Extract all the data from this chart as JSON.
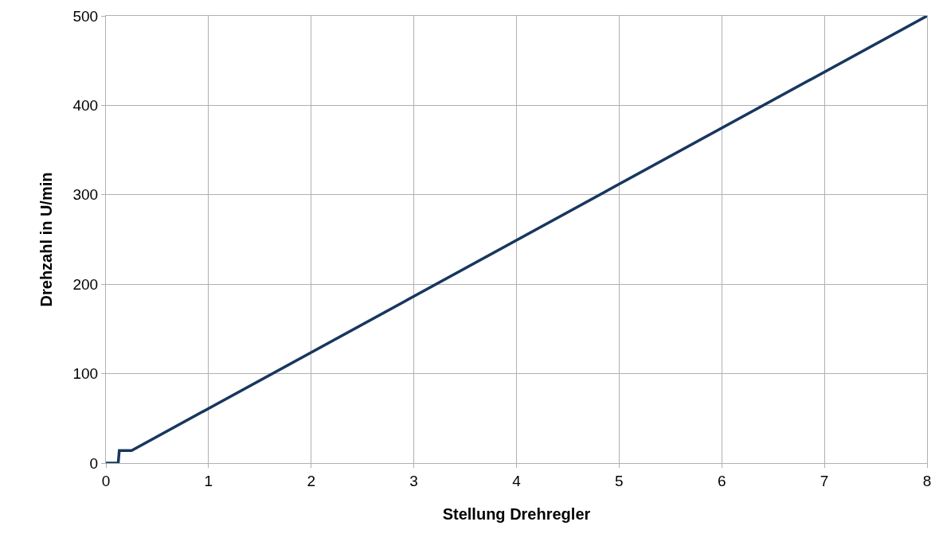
{
  "chart_data": {
    "type": "line",
    "xlabel": "Stellung Drehregler",
    "ylabel": "Drehzahl in U/min",
    "x": [
      0,
      0.12,
      0.13,
      0.17,
      0.25,
      8
    ],
    "series": [
      {
        "color": "#17375e",
        "values": [
          0,
          0,
          14,
          14,
          14,
          500
        ]
      }
    ],
    "xlim": [
      0,
      8
    ],
    "xticks": [
      0,
      1,
      2,
      3,
      4,
      5,
      6,
      7,
      8
    ],
    "ylim": [
      0,
      500
    ],
    "yticks": [
      0,
      100,
      200,
      300,
      400,
      500
    ],
    "grid": true,
    "legend": false,
    "marker": "none",
    "line_style": "solid"
  }
}
